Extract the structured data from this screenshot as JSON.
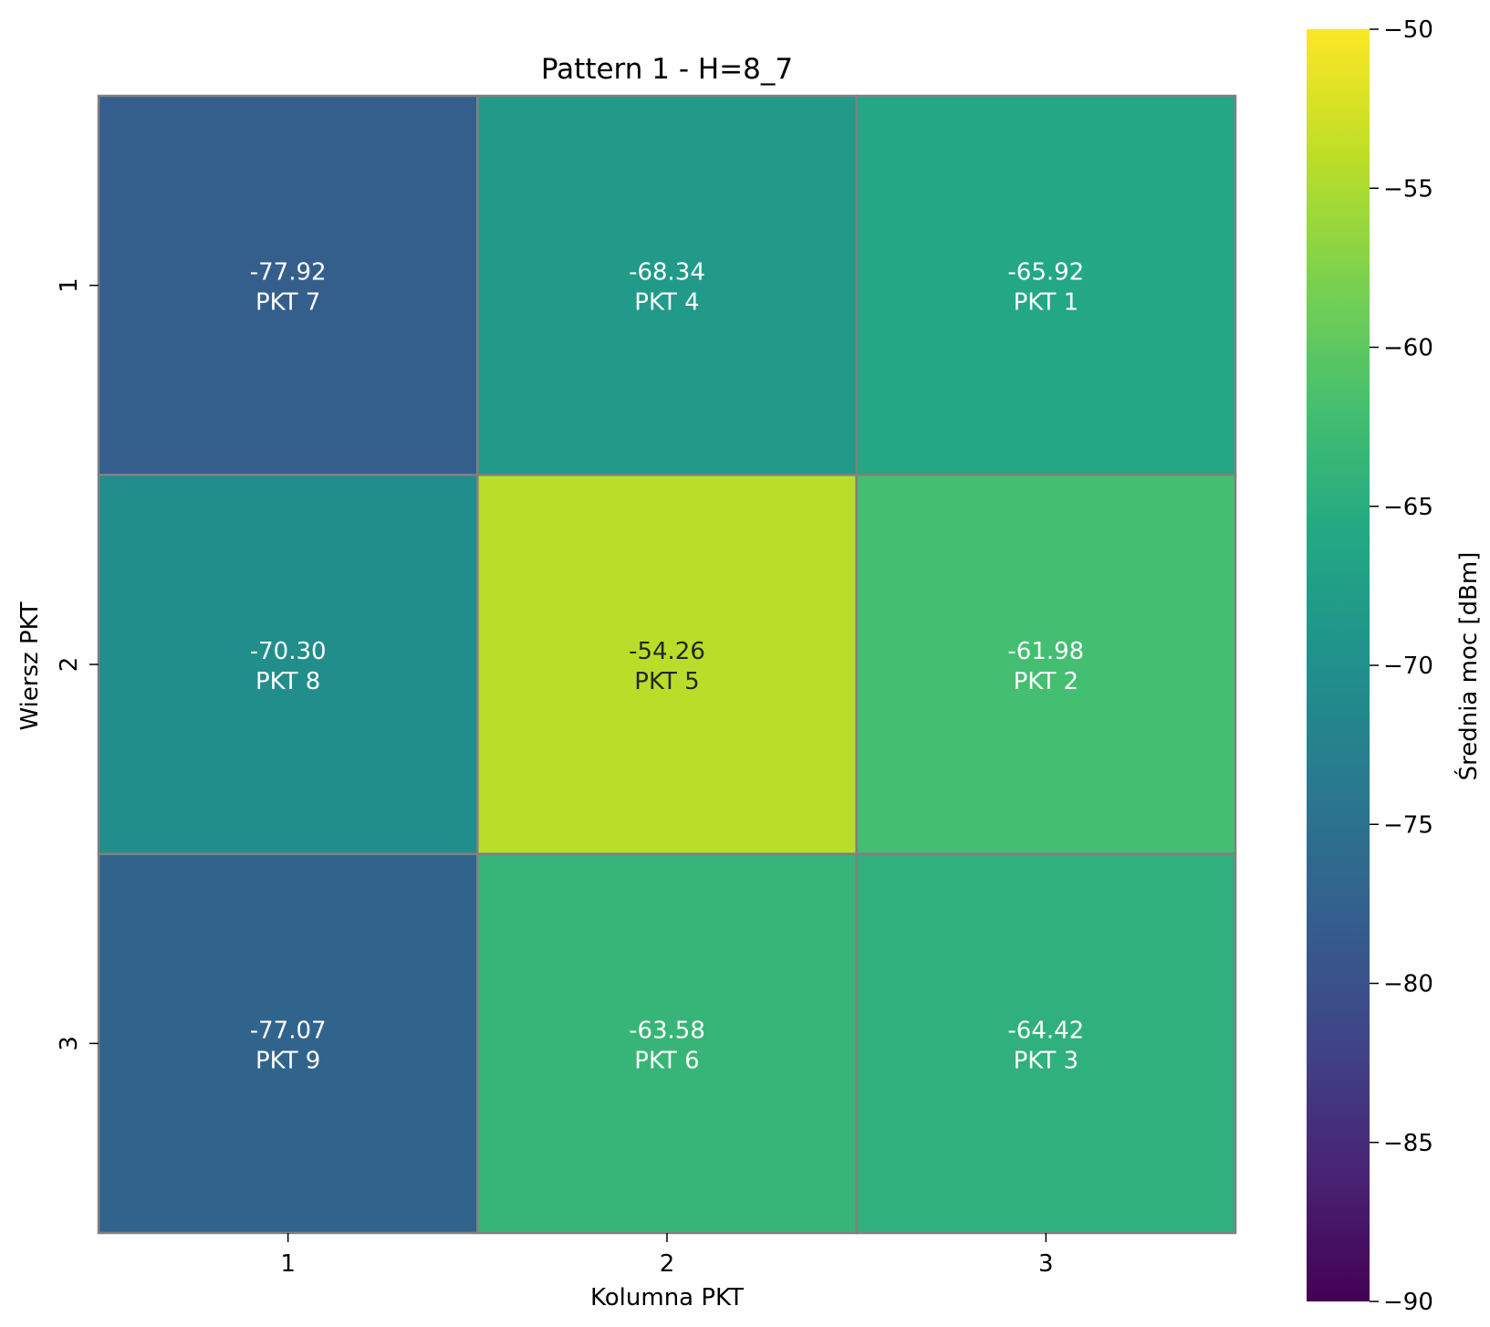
{
  "chart_data": {
    "type": "heatmap",
    "title": "Pattern 1 - H=8_7",
    "xlabel": "Kolumna PKT",
    "ylabel": "Wiersz PKT",
    "x_categories": [
      "1",
      "2",
      "3"
    ],
    "y_categories": [
      "1",
      "2",
      "3"
    ],
    "cells": [
      [
        {
          "value": -77.92,
          "value_label": "-77.92",
          "point_label": "PKT 7"
        },
        {
          "value": -68.34,
          "value_label": "-68.34",
          "point_label": "PKT 4"
        },
        {
          "value": -65.92,
          "value_label": "-65.92",
          "point_label": "PKT 1"
        }
      ],
      [
        {
          "value": -70.3,
          "value_label": "-70.30",
          "point_label": "PKT 8"
        },
        {
          "value": -54.26,
          "value_label": "-54.26",
          "point_label": "PKT 5"
        },
        {
          "value": -61.98,
          "value_label": "-61.98",
          "point_label": "PKT 2"
        }
      ],
      [
        {
          "value": -77.07,
          "value_label": "-77.07",
          "point_label": "PKT 9"
        },
        {
          "value": -63.58,
          "value_label": "-63.58",
          "point_label": "PKT 6"
        },
        {
          "value": -64.42,
          "value_label": "-64.42",
          "point_label": "PKT 3"
        }
      ]
    ],
    "colorbar": {
      "label": "Średnia moc [dBm]",
      "range": [
        -90,
        -50
      ],
      "ticks": [
        -50,
        -55,
        -60,
        -65,
        -70,
        -75,
        -80,
        -85,
        -90
      ],
      "tick_labels": [
        "−50",
        "−55",
        "−60",
        "−65",
        "−70",
        "−75",
        "−80",
        "−85",
        "−90"
      ],
      "colormap": "viridis"
    },
    "cell_border_color": "#808080",
    "grid": false
  }
}
